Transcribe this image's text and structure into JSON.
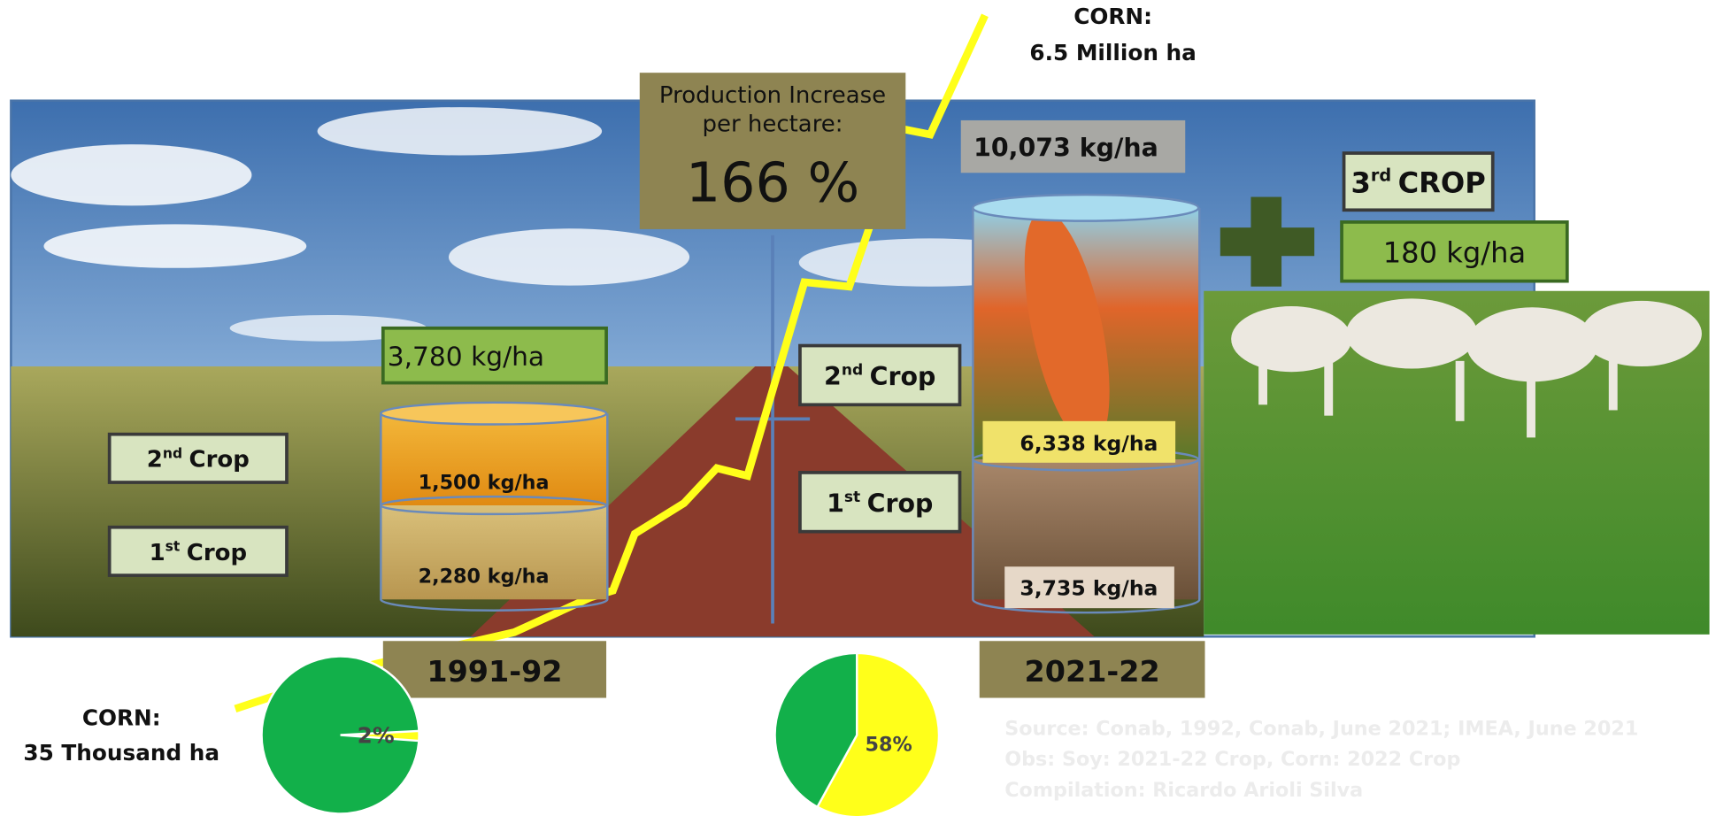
{
  "top_corn": {
    "line1": "CORN:",
    "line2": "6.5 Million ha"
  },
  "increase": {
    "line1": "Production Increase",
    "line2": "per hectare:",
    "value": "166 %"
  },
  "total_2021": "10,073 kg/ha",
  "third_crop": {
    "number": "3",
    "suffix": "rd",
    "word": "CROP",
    "yield": "180 kg/ha"
  },
  "period_1991": {
    "label": "1991-92",
    "total": "3,780 kg/ha",
    "second_crop_yield": "1,500 kg/ha",
    "first_crop_yield": "2,280 kg/ha",
    "second": {
      "number": "2",
      "suffix": "nd",
      "word": "Crop"
    },
    "first": {
      "number": "1",
      "suffix": "st",
      "word": "Crop"
    }
  },
  "period_2021": {
    "label": "2021-22",
    "second_crop_yield": "6,338 kg/ha",
    "first_crop_yield": "3,735 kg/ha",
    "second": {
      "number": "2",
      "suffix": "nd",
      "word": "Crop"
    },
    "first": {
      "number": "1",
      "suffix": "st",
      "word": "Crop"
    }
  },
  "bottom_corn": {
    "line1": "CORN:",
    "line2": "35 Thousand ha"
  },
  "pies": [
    {
      "value": 2,
      "label": "2%"
    },
    {
      "value": 58,
      "label": "58%"
    }
  ],
  "source": [
    "Source: Conab, 1992, Conab, June 2021; IMEA, June 2021",
    "Obs: Soy: 2021-22 Crop, Corn: 2022 Crop",
    "Compilation: Ricardo Arioli Silva"
  ]
}
